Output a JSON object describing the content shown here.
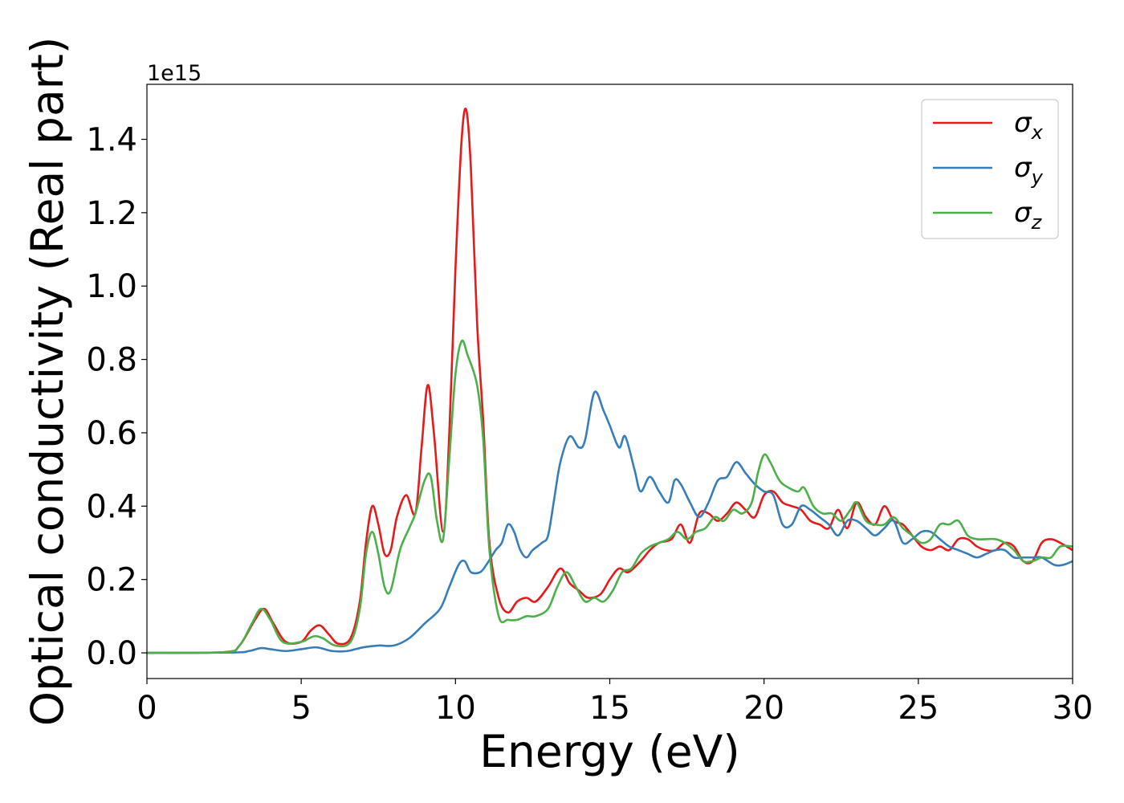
{
  "chart_data": {
    "type": "line",
    "title": "",
    "xlabel": "Energy (eV)",
    "ylabel": "Optical conductivity (Real part)",
    "y_offset_label": "1e15",
    "xlim": [
      0,
      30
    ],
    "ylim": [
      -0.07,
      1.55
    ],
    "x_ticks": [
      0,
      5,
      10,
      15,
      20,
      25,
      30
    ],
    "x_tick_labels": [
      "0",
      "5",
      "10",
      "15",
      "20",
      "25",
      "30"
    ],
    "y_ticks": [
      0.0,
      0.2,
      0.4,
      0.6,
      0.8,
      1.0,
      1.2,
      1.4
    ],
    "y_tick_labels": [
      "0.0",
      "0.2",
      "0.4",
      "0.6",
      "0.8",
      "1.0",
      "1.2",
      "1.4"
    ],
    "grid": false,
    "legend_position": "top-right",
    "series": [
      {
        "name": "σx",
        "label_base": "σ",
        "label_sub": "x",
        "color": "#e41a1c",
        "points": [
          [
            0,
            0
          ],
          [
            2.5,
            0.002
          ],
          [
            3.0,
            0.02
          ],
          [
            3.5,
            0.09
          ],
          [
            3.8,
            0.12
          ],
          [
            4.1,
            0.08
          ],
          [
            4.5,
            0.03
          ],
          [
            5.0,
            0.03
          ],
          [
            5.3,
            0.06
          ],
          [
            5.6,
            0.075
          ],
          [
            5.9,
            0.05
          ],
          [
            6.2,
            0.025
          ],
          [
            6.6,
            0.04
          ],
          [
            6.9,
            0.14
          ],
          [
            7.1,
            0.3
          ],
          [
            7.3,
            0.4
          ],
          [
            7.5,
            0.35
          ],
          [
            7.7,
            0.27
          ],
          [
            7.9,
            0.28
          ],
          [
            8.1,
            0.37
          ],
          [
            8.4,
            0.43
          ],
          [
            8.7,
            0.38
          ],
          [
            8.9,
            0.56
          ],
          [
            9.1,
            0.73
          ],
          [
            9.3,
            0.6
          ],
          [
            9.6,
            0.33
          ],
          [
            9.8,
            0.6
          ],
          [
            10.0,
            1.05
          ],
          [
            10.2,
            1.4
          ],
          [
            10.35,
            1.48
          ],
          [
            10.5,
            1.32
          ],
          [
            10.7,
            0.9
          ],
          [
            10.9,
            0.63
          ],
          [
            11.1,
            0.3
          ],
          [
            11.4,
            0.15
          ],
          [
            11.7,
            0.11
          ],
          [
            12.0,
            0.14
          ],
          [
            12.3,
            0.15
          ],
          [
            12.6,
            0.14
          ],
          [
            13.0,
            0.18
          ],
          [
            13.4,
            0.23
          ],
          [
            13.7,
            0.19
          ],
          [
            14.0,
            0.17
          ],
          [
            14.3,
            0.15
          ],
          [
            14.7,
            0.16
          ],
          [
            15.0,
            0.2
          ],
          [
            15.3,
            0.23
          ],
          [
            15.6,
            0.22
          ],
          [
            16.0,
            0.25
          ],
          [
            16.3,
            0.28
          ],
          [
            16.6,
            0.3
          ],
          [
            17.0,
            0.31
          ],
          [
            17.3,
            0.35
          ],
          [
            17.6,
            0.3
          ],
          [
            17.9,
            0.38
          ],
          [
            18.2,
            0.38
          ],
          [
            18.5,
            0.36
          ],
          [
            18.8,
            0.38
          ],
          [
            19.1,
            0.41
          ],
          [
            19.4,
            0.39
          ],
          [
            19.7,
            0.37
          ],
          [
            20.0,
            0.43
          ],
          [
            20.3,
            0.44
          ],
          [
            20.6,
            0.41
          ],
          [
            20.9,
            0.4
          ],
          [
            21.2,
            0.39
          ],
          [
            21.5,
            0.36
          ],
          [
            21.8,
            0.35
          ],
          [
            22.1,
            0.34
          ],
          [
            22.4,
            0.39
          ],
          [
            22.7,
            0.34
          ],
          [
            23.0,
            0.41
          ],
          [
            23.3,
            0.37
          ],
          [
            23.6,
            0.35
          ],
          [
            23.9,
            0.4
          ],
          [
            24.2,
            0.36
          ],
          [
            24.5,
            0.35
          ],
          [
            24.8,
            0.32
          ],
          [
            25.1,
            0.29
          ],
          [
            25.4,
            0.28
          ],
          [
            25.7,
            0.29
          ],
          [
            26.0,
            0.28
          ],
          [
            26.3,
            0.31
          ],
          [
            26.6,
            0.31
          ],
          [
            26.9,
            0.29
          ],
          [
            27.2,
            0.28
          ],
          [
            27.5,
            0.28
          ],
          [
            27.8,
            0.3
          ],
          [
            28.1,
            0.29
          ],
          [
            28.4,
            0.25
          ],
          [
            28.7,
            0.25
          ],
          [
            29.0,
            0.3
          ],
          [
            29.3,
            0.31
          ],
          [
            29.6,
            0.3
          ],
          [
            30.0,
            0.28
          ]
        ]
      },
      {
        "name": "σy",
        "label_base": "σ",
        "label_sub": "y",
        "color": "#377eb8",
        "points": [
          [
            0,
            0
          ],
          [
            2.8,
            0.001
          ],
          [
            3.3,
            0.005
          ],
          [
            3.7,
            0.013
          ],
          [
            4.0,
            0.01
          ],
          [
            4.5,
            0.005
          ],
          [
            5.0,
            0.01
          ],
          [
            5.5,
            0.015
          ],
          [
            6.0,
            0.005
          ],
          [
            6.5,
            0.005
          ],
          [
            7.0,
            0.015
          ],
          [
            7.5,
            0.02
          ],
          [
            8.0,
            0.02
          ],
          [
            8.5,
            0.04
          ],
          [
            9.0,
            0.08
          ],
          [
            9.5,
            0.12
          ],
          [
            9.8,
            0.18
          ],
          [
            10.1,
            0.24
          ],
          [
            10.3,
            0.25
          ],
          [
            10.5,
            0.22
          ],
          [
            10.8,
            0.22
          ],
          [
            11.0,
            0.24
          ],
          [
            11.3,
            0.28
          ],
          [
            11.5,
            0.3
          ],
          [
            11.7,
            0.35
          ],
          [
            11.9,
            0.33
          ],
          [
            12.1,
            0.28
          ],
          [
            12.3,
            0.26
          ],
          [
            12.5,
            0.28
          ],
          [
            12.8,
            0.3
          ],
          [
            13.0,
            0.32
          ],
          [
            13.2,
            0.42
          ],
          [
            13.4,
            0.52
          ],
          [
            13.7,
            0.59
          ],
          [
            14.0,
            0.56
          ],
          [
            14.2,
            0.58
          ],
          [
            14.5,
            0.71
          ],
          [
            14.8,
            0.66
          ],
          [
            15.0,
            0.62
          ],
          [
            15.3,
            0.56
          ],
          [
            15.5,
            0.59
          ],
          [
            15.8,
            0.5
          ],
          [
            16.0,
            0.44
          ],
          [
            16.3,
            0.48
          ],
          [
            16.6,
            0.44
          ],
          [
            16.9,
            0.41
          ],
          [
            17.1,
            0.47
          ],
          [
            17.3,
            0.46
          ],
          [
            17.6,
            0.41
          ],
          [
            17.9,
            0.37
          ],
          [
            18.2,
            0.41
          ],
          [
            18.5,
            0.47
          ],
          [
            18.8,
            0.48
          ],
          [
            19.1,
            0.52
          ],
          [
            19.4,
            0.49
          ],
          [
            19.7,
            0.46
          ],
          [
            20.0,
            0.44
          ],
          [
            20.3,
            0.43
          ],
          [
            20.6,
            0.35
          ],
          [
            20.9,
            0.35
          ],
          [
            21.2,
            0.4
          ],
          [
            21.5,
            0.39
          ],
          [
            21.8,
            0.37
          ],
          [
            22.1,
            0.35
          ],
          [
            22.4,
            0.32
          ],
          [
            22.7,
            0.36
          ],
          [
            23.0,
            0.36
          ],
          [
            23.3,
            0.34
          ],
          [
            23.6,
            0.32
          ],
          [
            23.9,
            0.34
          ],
          [
            24.2,
            0.36
          ],
          [
            24.5,
            0.3
          ],
          [
            24.8,
            0.31
          ],
          [
            25.1,
            0.33
          ],
          [
            25.4,
            0.33
          ],
          [
            25.7,
            0.31
          ],
          [
            26.0,
            0.29
          ],
          [
            26.3,
            0.28
          ],
          [
            26.6,
            0.27
          ],
          [
            26.9,
            0.26
          ],
          [
            27.2,
            0.27
          ],
          [
            27.5,
            0.28
          ],
          [
            27.8,
            0.28
          ],
          [
            28.1,
            0.26
          ],
          [
            28.4,
            0.26
          ],
          [
            28.7,
            0.26
          ],
          [
            29.0,
            0.26
          ],
          [
            29.4,
            0.24
          ],
          [
            29.7,
            0.24
          ],
          [
            30.0,
            0.25
          ]
        ]
      },
      {
        "name": "σz",
        "label_base": "σ",
        "label_sub": "z",
        "color": "#4daf4a",
        "points": [
          [
            0,
            0
          ],
          [
            2.5,
            0.002
          ],
          [
            3.0,
            0.02
          ],
          [
            3.4,
            0.08
          ],
          [
            3.7,
            0.12
          ],
          [
            4.0,
            0.09
          ],
          [
            4.4,
            0.03
          ],
          [
            5.0,
            0.03
          ],
          [
            5.4,
            0.045
          ],
          [
            5.7,
            0.04
          ],
          [
            6.1,
            0.02
          ],
          [
            6.6,
            0.03
          ],
          [
            6.9,
            0.12
          ],
          [
            7.1,
            0.27
          ],
          [
            7.3,
            0.33
          ],
          [
            7.5,
            0.27
          ],
          [
            7.7,
            0.18
          ],
          [
            7.9,
            0.17
          ],
          [
            8.2,
            0.28
          ],
          [
            8.5,
            0.34
          ],
          [
            8.7,
            0.38
          ],
          [
            9.0,
            0.47
          ],
          [
            9.2,
            0.48
          ],
          [
            9.4,
            0.36
          ],
          [
            9.6,
            0.31
          ],
          [
            9.8,
            0.53
          ],
          [
            10.0,
            0.76
          ],
          [
            10.2,
            0.85
          ],
          [
            10.4,
            0.81
          ],
          [
            10.7,
            0.73
          ],
          [
            10.9,
            0.58
          ],
          [
            11.1,
            0.28
          ],
          [
            11.4,
            0.1
          ],
          [
            11.7,
            0.09
          ],
          [
            12.0,
            0.09
          ],
          [
            12.3,
            0.1
          ],
          [
            12.6,
            0.1
          ],
          [
            13.0,
            0.12
          ],
          [
            13.3,
            0.18
          ],
          [
            13.6,
            0.22
          ],
          [
            13.9,
            0.18
          ],
          [
            14.2,
            0.14
          ],
          [
            14.5,
            0.15
          ],
          [
            14.8,
            0.14
          ],
          [
            15.1,
            0.17
          ],
          [
            15.4,
            0.22
          ],
          [
            15.7,
            0.23
          ],
          [
            16.0,
            0.27
          ],
          [
            16.3,
            0.29
          ],
          [
            16.6,
            0.3
          ],
          [
            16.9,
            0.31
          ],
          [
            17.2,
            0.33
          ],
          [
            17.5,
            0.31
          ],
          [
            17.8,
            0.33
          ],
          [
            18.1,
            0.34
          ],
          [
            18.4,
            0.37
          ],
          [
            18.7,
            0.36
          ],
          [
            19.0,
            0.39
          ],
          [
            19.3,
            0.38
          ],
          [
            19.6,
            0.41
          ],
          [
            19.8,
            0.49
          ],
          [
            20.0,
            0.54
          ],
          [
            20.2,
            0.52
          ],
          [
            20.5,
            0.47
          ],
          [
            20.8,
            0.45
          ],
          [
            21.1,
            0.44
          ],
          [
            21.3,
            0.45
          ],
          [
            21.6,
            0.4
          ],
          [
            21.9,
            0.38
          ],
          [
            22.2,
            0.38
          ],
          [
            22.5,
            0.36
          ],
          [
            22.8,
            0.39
          ],
          [
            23.0,
            0.41
          ],
          [
            23.3,
            0.36
          ],
          [
            23.6,
            0.35
          ],
          [
            23.9,
            0.35
          ],
          [
            24.2,
            0.37
          ],
          [
            24.5,
            0.34
          ],
          [
            24.8,
            0.32
          ],
          [
            25.1,
            0.3
          ],
          [
            25.4,
            0.31
          ],
          [
            25.7,
            0.35
          ],
          [
            26.0,
            0.35
          ],
          [
            26.3,
            0.36
          ],
          [
            26.6,
            0.32
          ],
          [
            26.9,
            0.31
          ],
          [
            27.2,
            0.31
          ],
          [
            27.5,
            0.31
          ],
          [
            27.8,
            0.3
          ],
          [
            28.1,
            0.28
          ],
          [
            28.4,
            0.25
          ],
          [
            28.7,
            0.25
          ],
          [
            29.0,
            0.26
          ],
          [
            29.3,
            0.26
          ],
          [
            29.6,
            0.29
          ],
          [
            30.0,
            0.29
          ]
        ]
      }
    ]
  }
}
